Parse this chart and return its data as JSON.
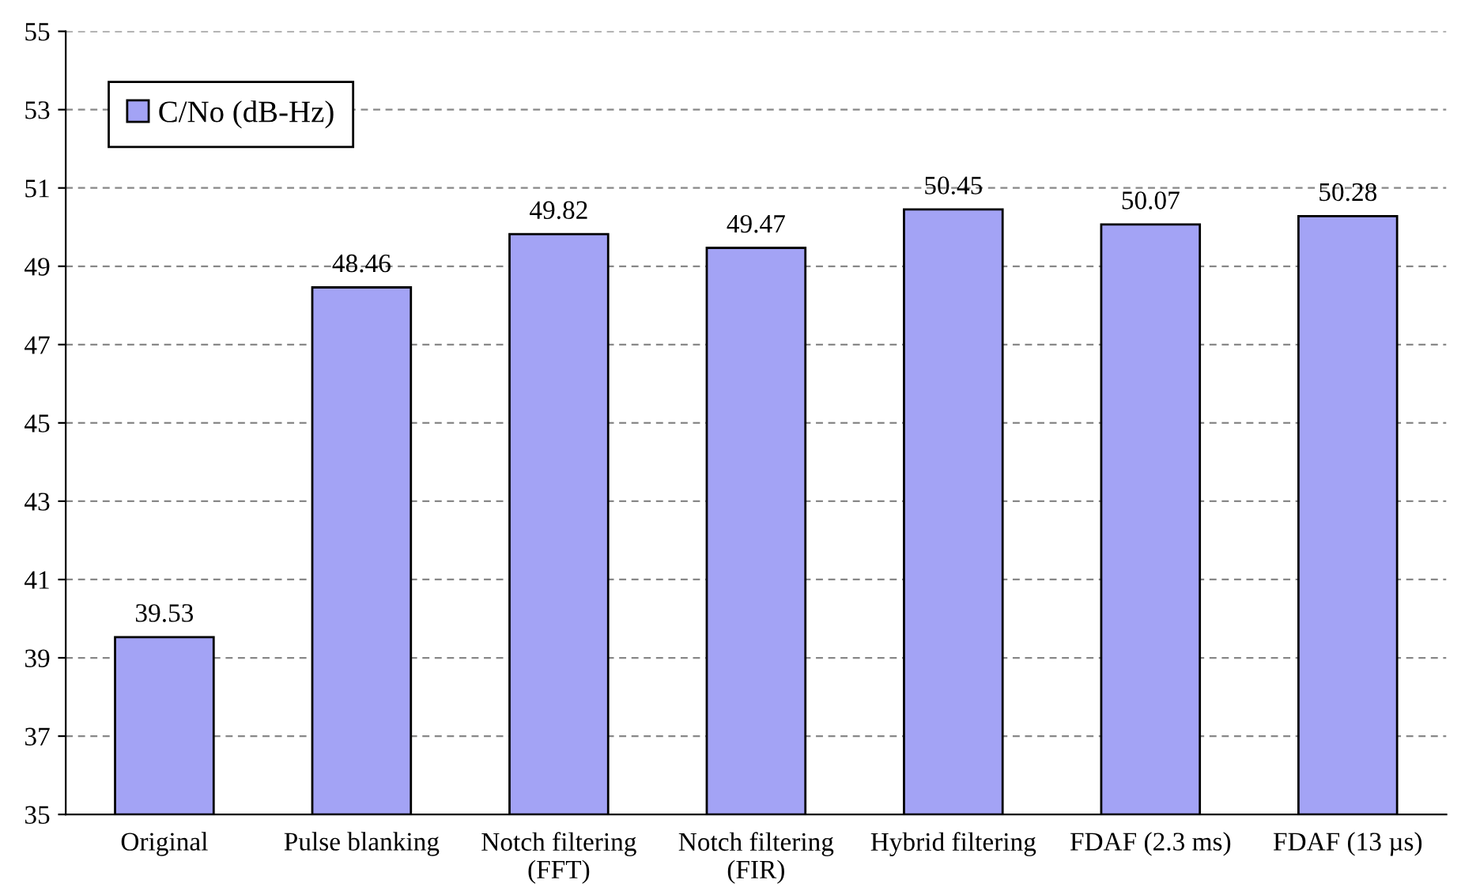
{
  "chart_data": {
    "type": "bar",
    "categories": [
      "Original",
      "Pulse blanking",
      "Notch filtering\n(FFT)",
      "Notch filtering\n(FIR)",
      "Hybrid filtering",
      "FDAF (2.3 ms)",
      "FDAF (13 µs)"
    ],
    "series": [
      {
        "name": "C/No (dB-Hz)",
        "color": "#a3a3f5",
        "values": [
          39.53,
          48.46,
          49.82,
          49.47,
          50.45,
          50.07,
          50.28
        ]
      }
    ],
    "ylim": [
      35,
      55
    ],
    "yticks": [
      35,
      37,
      39,
      41,
      43,
      45,
      47,
      49,
      51,
      53,
      55
    ],
    "grid": "y",
    "legend": "top left",
    "data_labels": true
  }
}
